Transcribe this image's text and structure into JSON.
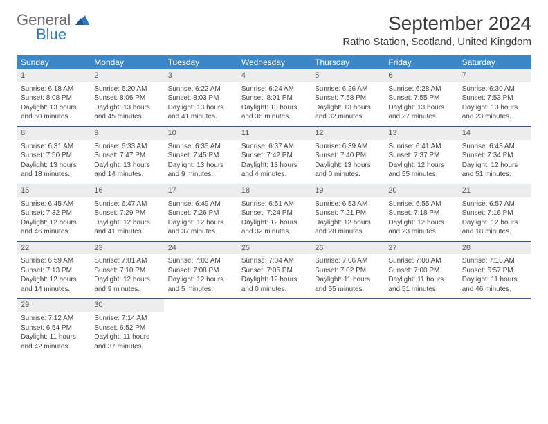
{
  "logo": {
    "general": "General",
    "blue": "Blue"
  },
  "title": "September 2024",
  "location": "Ratho Station, Scotland, United Kingdom",
  "colors": {
    "header_bg": "#3b87c8",
    "header_text": "#ffffff",
    "date_bar_bg": "#ececec",
    "week_border": "#2b5d8a",
    "logo_gray": "#6a6a6a",
    "logo_blue": "#2f78c0"
  },
  "dayNames": [
    "Sunday",
    "Monday",
    "Tuesday",
    "Wednesday",
    "Thursday",
    "Friday",
    "Saturday"
  ],
  "days": [
    {
      "n": 1,
      "sr": "6:18 AM",
      "ss": "8:08 PM",
      "dl": "13 hours and 50 minutes."
    },
    {
      "n": 2,
      "sr": "6:20 AM",
      "ss": "8:06 PM",
      "dl": "13 hours and 45 minutes."
    },
    {
      "n": 3,
      "sr": "6:22 AM",
      "ss": "8:03 PM",
      "dl": "13 hours and 41 minutes."
    },
    {
      "n": 4,
      "sr": "6:24 AM",
      "ss": "8:01 PM",
      "dl": "13 hours and 36 minutes."
    },
    {
      "n": 5,
      "sr": "6:26 AM",
      "ss": "7:58 PM",
      "dl": "13 hours and 32 minutes."
    },
    {
      "n": 6,
      "sr": "6:28 AM",
      "ss": "7:55 PM",
      "dl": "13 hours and 27 minutes."
    },
    {
      "n": 7,
      "sr": "6:30 AM",
      "ss": "7:53 PM",
      "dl": "13 hours and 23 minutes."
    },
    {
      "n": 8,
      "sr": "6:31 AM",
      "ss": "7:50 PM",
      "dl": "13 hours and 18 minutes."
    },
    {
      "n": 9,
      "sr": "6:33 AM",
      "ss": "7:47 PM",
      "dl": "13 hours and 14 minutes."
    },
    {
      "n": 10,
      "sr": "6:35 AM",
      "ss": "7:45 PM",
      "dl": "13 hours and 9 minutes."
    },
    {
      "n": 11,
      "sr": "6:37 AM",
      "ss": "7:42 PM",
      "dl": "13 hours and 4 minutes."
    },
    {
      "n": 12,
      "sr": "6:39 AM",
      "ss": "7:40 PM",
      "dl": "13 hours and 0 minutes."
    },
    {
      "n": 13,
      "sr": "6:41 AM",
      "ss": "7:37 PM",
      "dl": "12 hours and 55 minutes."
    },
    {
      "n": 14,
      "sr": "6:43 AM",
      "ss": "7:34 PM",
      "dl": "12 hours and 51 minutes."
    },
    {
      "n": 15,
      "sr": "6:45 AM",
      "ss": "7:32 PM",
      "dl": "12 hours and 46 minutes."
    },
    {
      "n": 16,
      "sr": "6:47 AM",
      "ss": "7:29 PM",
      "dl": "12 hours and 41 minutes."
    },
    {
      "n": 17,
      "sr": "6:49 AM",
      "ss": "7:26 PM",
      "dl": "12 hours and 37 minutes."
    },
    {
      "n": 18,
      "sr": "6:51 AM",
      "ss": "7:24 PM",
      "dl": "12 hours and 32 minutes."
    },
    {
      "n": 19,
      "sr": "6:53 AM",
      "ss": "7:21 PM",
      "dl": "12 hours and 28 minutes."
    },
    {
      "n": 20,
      "sr": "6:55 AM",
      "ss": "7:18 PM",
      "dl": "12 hours and 23 minutes."
    },
    {
      "n": 21,
      "sr": "6:57 AM",
      "ss": "7:16 PM",
      "dl": "12 hours and 18 minutes."
    },
    {
      "n": 22,
      "sr": "6:59 AM",
      "ss": "7:13 PM",
      "dl": "12 hours and 14 minutes."
    },
    {
      "n": 23,
      "sr": "7:01 AM",
      "ss": "7:10 PM",
      "dl": "12 hours and 9 minutes."
    },
    {
      "n": 24,
      "sr": "7:03 AM",
      "ss": "7:08 PM",
      "dl": "12 hours and 5 minutes."
    },
    {
      "n": 25,
      "sr": "7:04 AM",
      "ss": "7:05 PM",
      "dl": "12 hours and 0 minutes."
    },
    {
      "n": 26,
      "sr": "7:06 AM",
      "ss": "7:02 PM",
      "dl": "11 hours and 55 minutes."
    },
    {
      "n": 27,
      "sr": "7:08 AM",
      "ss": "7:00 PM",
      "dl": "11 hours and 51 minutes."
    },
    {
      "n": 28,
      "sr": "7:10 AM",
      "ss": "6:57 PM",
      "dl": "11 hours and 46 minutes."
    },
    {
      "n": 29,
      "sr": "7:12 AM",
      "ss": "6:54 PM",
      "dl": "11 hours and 42 minutes."
    },
    {
      "n": 30,
      "sr": "7:14 AM",
      "ss": "6:52 PM",
      "dl": "11 hours and 37 minutes."
    }
  ],
  "labels": {
    "sunrise": "Sunrise:",
    "sunset": "Sunset:",
    "daylight": "Daylight:"
  },
  "layout": {
    "startDayOfWeek": 0,
    "weeks": 5,
    "cols": 7
  }
}
